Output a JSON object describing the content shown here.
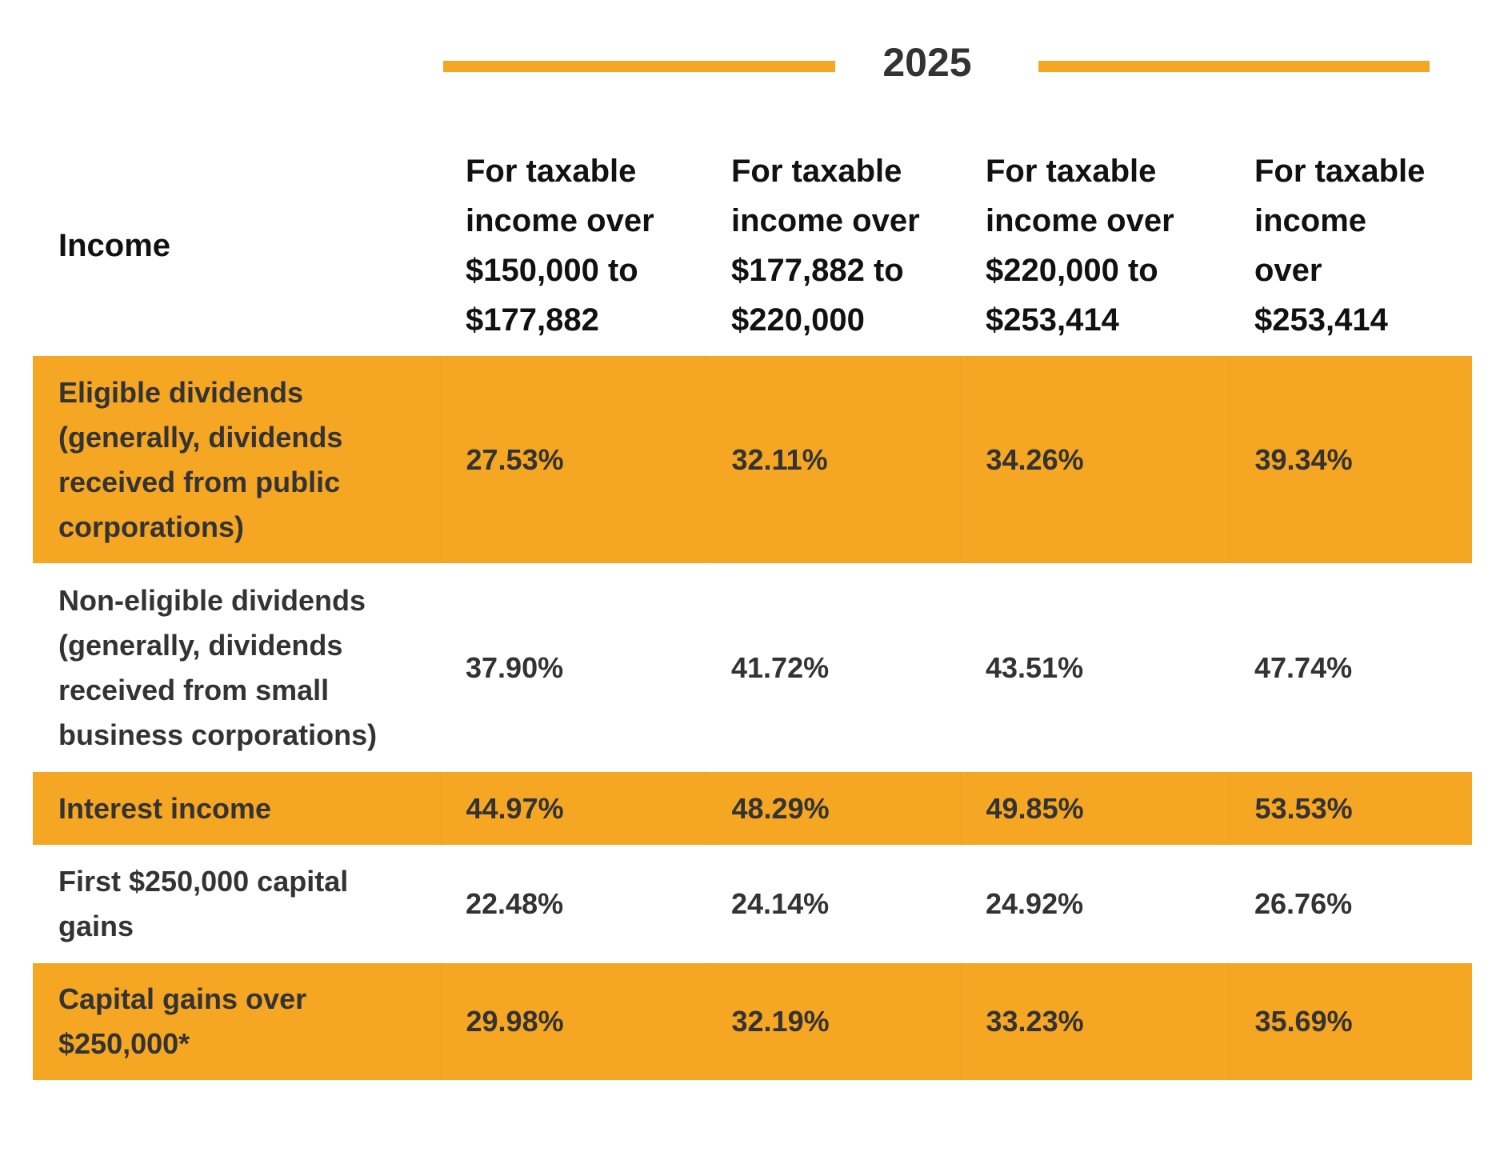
{
  "header": {
    "year": "2025"
  },
  "table": {
    "columns": [
      "Income",
      "For taxable income over $150,000 to $177,882",
      "For taxable income over $177,882 to $220,000",
      "For taxable income over $220,000 to $253,414",
      "For taxable income over $253,414"
    ],
    "rows": [
      [
        "Eligible dividends (generally, dividends received from public corporations)",
        "27.53%",
        "32.11%",
        "34.26%",
        "39.34%"
      ],
      [
        "Non-eligible dividends (generally, dividends received from small business corporations)",
        "37.90%",
        "41.72%",
        "43.51%",
        "47.74%"
      ],
      [
        "Interest income",
        "44.97%",
        "48.29%",
        "49.85%",
        "53.53%"
      ],
      [
        "First $250,000 capital gains",
        "22.48%",
        "24.14%",
        "24.92%",
        "26.76%"
      ],
      [
        "Capital gains over $250,000*",
        "29.98%",
        "32.19%",
        "33.23%",
        "35.69%"
      ]
    ]
  }
}
